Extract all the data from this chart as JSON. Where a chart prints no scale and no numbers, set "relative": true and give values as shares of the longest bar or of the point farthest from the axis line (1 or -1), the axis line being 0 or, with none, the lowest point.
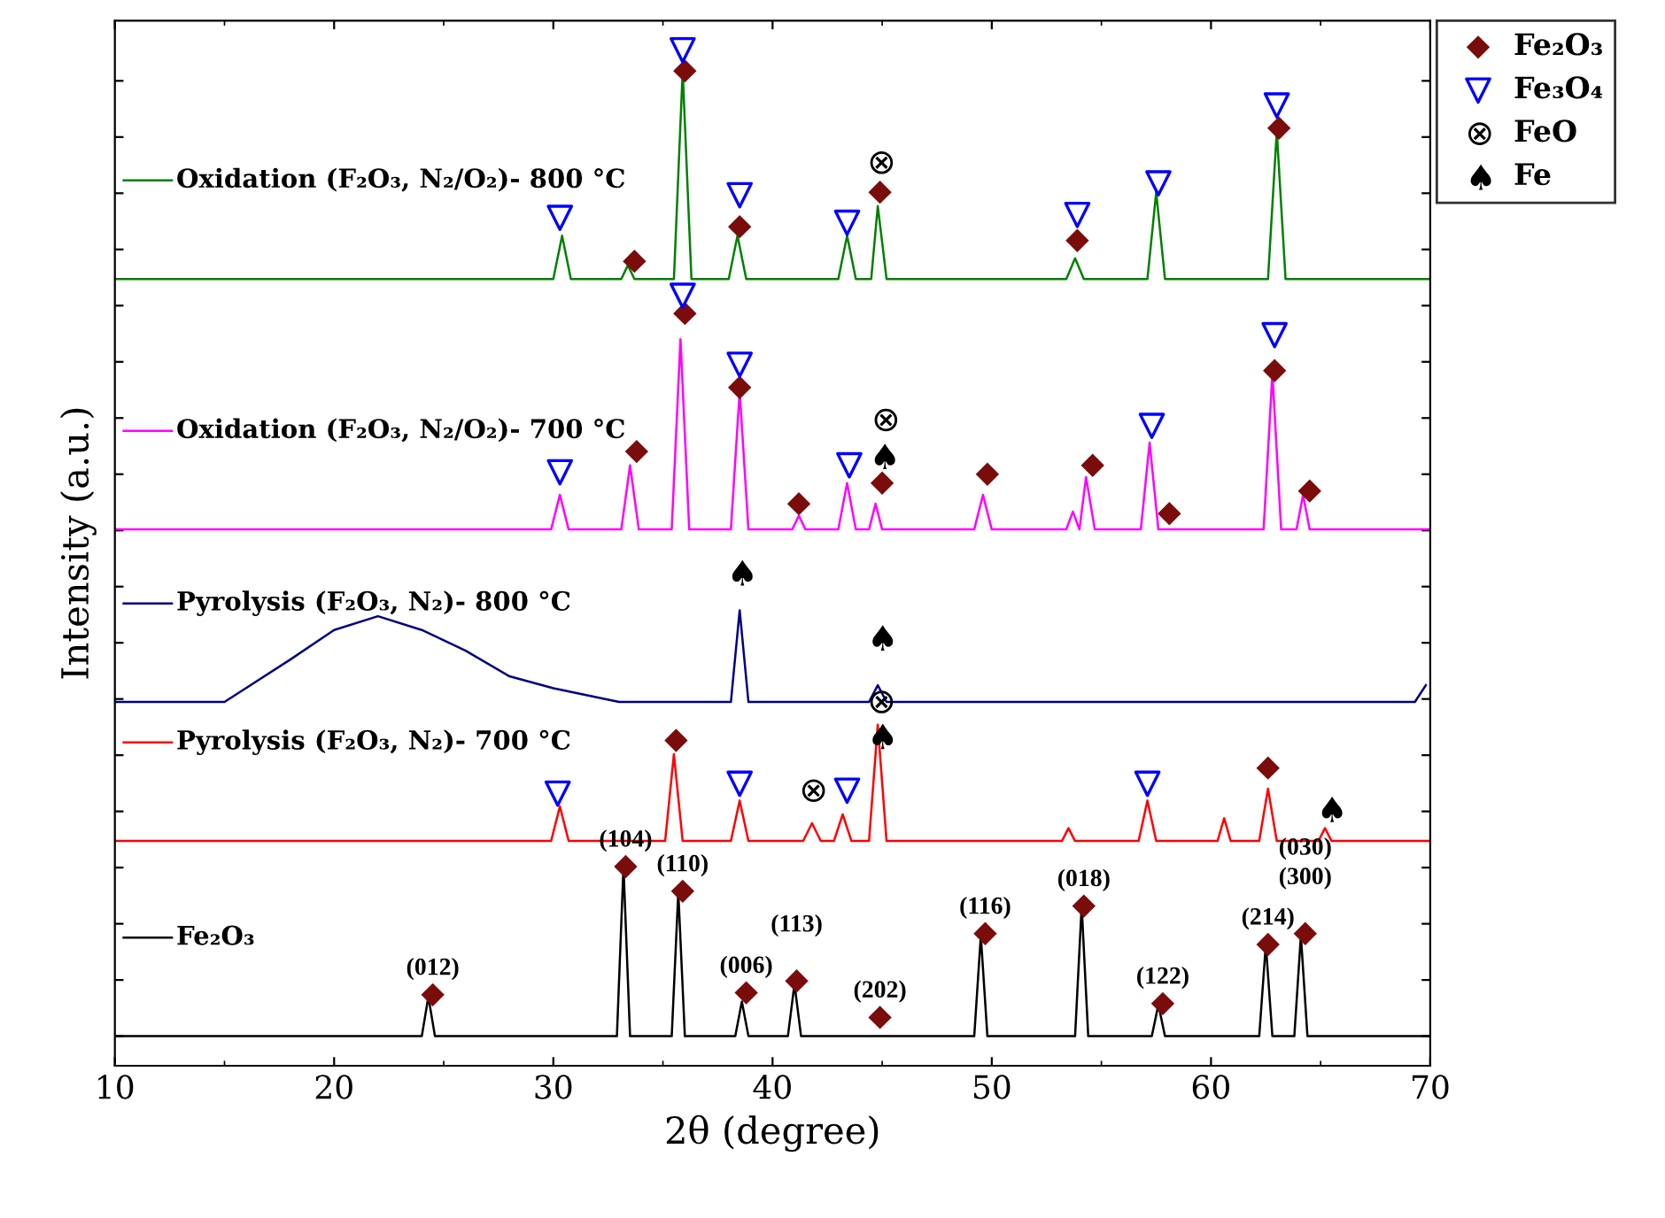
{
  "chart_data": {
    "type": "line",
    "relative": true,
    "xlabel": "2θ (degree)",
    "ylabel": "Intensity (a.u.)",
    "xlim": [
      10,
      70
    ],
    "xticks": [
      10,
      20,
      30,
      40,
      50,
      60,
      70
    ],
    "legend": "top right",
    "grid": false,
    "series": [
      {
        "name": "Oxidation (F₂O₃, N₂/O₂)- 800 °C",
        "color": "#008000",
        "x": [
          10,
          30.0,
          30.4,
          30.8,
          33.1,
          33.4,
          33.7,
          35.5,
          35.9,
          36.3,
          38.0,
          38.4,
          38.8,
          43.0,
          43.4,
          43.8,
          44.5,
          44.8,
          45.2,
          53.4,
          53.8,
          54.2,
          57.1,
          57.5,
          57.9,
          62.6,
          63.0,
          63.4,
          70
        ],
        "values": [
          0.768,
          0.768,
          0.812,
          0.768,
          0.768,
          0.782,
          0.768,
          0.768,
          0.979,
          0.768,
          0.768,
          0.812,
          0.768,
          0.768,
          0.812,
          0.768,
          0.768,
          0.842,
          0.768,
          0.768,
          0.789,
          0.768,
          0.768,
          0.856,
          0.768,
          0.768,
          0.918,
          0.768,
          0.768
        ]
      },
      {
        "name": "Oxidation (F₂O₃, N₂/O₂)- 700 °C",
        "color": "#ff00ff",
        "x": [
          10,
          29.9,
          30.3,
          30.7,
          33.1,
          33.5,
          33.9,
          35.4,
          35.8,
          36.2,
          38.1,
          38.5,
          38.9,
          40.9,
          41.2,
          41.5,
          43.0,
          43.4,
          43.8,
          44.4,
          44.7,
          45.0,
          49.2,
          49.6,
          50.0,
          53.4,
          53.7,
          54.0,
          54.3,
          54.7,
          56.8,
          57.2,
          57.6,
          62.4,
          62.8,
          63.2,
          63.9,
          64.2,
          64.5,
          70
        ],
        "values": [
          0.514,
          0.514,
          0.549,
          0.514,
          0.514,
          0.579,
          0.514,
          0.514,
          0.707,
          0.514,
          0.514,
          0.654,
          0.514,
          0.514,
          0.528,
          0.514,
          0.514,
          0.561,
          0.514,
          0.514,
          0.54,
          0.514,
          0.514,
          0.549,
          0.514,
          0.514,
          0.532,
          0.514,
          0.567,
          0.514,
          0.514,
          0.602,
          0.514,
          0.514,
          0.672,
          0.514,
          0.514,
          0.549,
          0.514,
          0.514
        ]
      },
      {
        "name": "Pyrolysis (F₂O₃, N₂)- 800 °C",
        "color": "#000080",
        "x": [
          10,
          15,
          18,
          20,
          22,
          24,
          26,
          28,
          30,
          33,
          38.1,
          38.5,
          38.9,
          44.4,
          44.8,
          45.2,
          69.3,
          69.8
        ],
        "values": [
          0.339,
          0.339,
          0.382,
          0.412,
          0.426,
          0.412,
          0.391,
          0.365,
          0.353,
          0.339,
          0.339,
          0.432,
          0.339,
          0.339,
          0.356,
          0.339,
          0.339,
          0.356
        ]
      },
      {
        "name": "Pyrolysis (F₂O₃, N₂)- 700 °C",
        "color": "#ff0000",
        "x": [
          10,
          29.9,
          30.3,
          30.7,
          35.1,
          35.5,
          35.9,
          38.1,
          38.5,
          38.9,
          41.4,
          41.8,
          42.2,
          42.8,
          43.2,
          43.6,
          44.4,
          44.8,
          45.2,
          53.2,
          53.5,
          53.8,
          56.7,
          57.1,
          57.5,
          60.3,
          60.6,
          60.9,
          62.2,
          62.6,
          63.0,
          64.9,
          65.2,
          65.5,
          70
        ],
        "values": [
          0.198,
          0.198,
          0.233,
          0.198,
          0.198,
          0.286,
          0.198,
          0.198,
          0.239,
          0.198,
          0.198,
          0.216,
          0.198,
          0.198,
          0.225,
          0.198,
          0.198,
          0.316,
          0.198,
          0.198,
          0.211,
          0.198,
          0.198,
          0.239,
          0.198,
          0.198,
          0.221,
          0.198,
          0.198,
          0.251,
          0.198,
          0.198,
          0.211,
          0.198,
          0.198
        ]
      },
      {
        "name": "Fe₂O₃",
        "color": "#000000",
        "x": [
          10,
          24.0,
          24.3,
          24.6,
          32.9,
          33.2,
          33.5,
          35.4,
          35.7,
          36.0,
          38.3,
          38.6,
          38.9,
          40.7,
          41.0,
          41.3,
          49.2,
          49.5,
          49.8,
          53.8,
          54.1,
          54.4,
          57.3,
          57.6,
          57.9,
          62.2,
          62.5,
          62.8,
          63.8,
          64.1,
          64.4,
          70
        ],
        "values": [
          0.0,
          0.0,
          0.04,
          0.0,
          0.0,
          0.172,
          0.0,
          0.0,
          0.146,
          0.0,
          0.0,
          0.035,
          0.0,
          0.0,
          0.053,
          0.0,
          0.0,
          0.102,
          0.0,
          0.0,
          0.132,
          0.0,
          0.0,
          0.032,
          0.0,
          0.0,
          0.093,
          0.0,
          0.0,
          0.102,
          0.0,
          0.0
        ]
      },
      {
        "name": "Fe₂O₃",
        "type": "scatter",
        "marker": "diamond",
        "color": "#7b0c0c",
        "x": [
          33.7,
          36.0,
          38.5,
          44.9,
          53.9,
          63.1,
          33.8,
          36.0,
          38.5,
          41.2,
          45.0,
          49.8,
          54.6,
          58.1,
          62.9,
          64.5,
          35.6,
          62.6,
          24.5,
          33.3,
          35.9,
          38.8,
          41.1,
          44.9,
          49.7,
          54.2,
          57.8,
          62.6,
          64.3
        ],
        "values": [
          0.786,
          0.979,
          0.821,
          0.856,
          0.807,
          0.921,
          0.593,
          0.733,
          0.658,
          0.54,
          0.561,
          0.57,
          0.579,
          0.53,
          0.675,
          0.553,
          0.3,
          0.272,
          0.042,
          0.172,
          0.147,
          0.044,
          0.056,
          0.019,
          0.104,
          0.132,
          0.033,
          0.093,
          0.104
        ]
      },
      {
        "name": "Fe₃O₄",
        "type": "scatter",
        "marker": "triangle",
        "color": "#0000ff",
        "x": [
          30.3,
          35.9,
          38.5,
          43.4,
          53.9,
          57.6,
          63.0,
          30.3,
          35.9,
          38.5,
          43.5,
          57.3,
          62.9,
          30.2,
          38.5,
          43.4,
          57.1
        ],
        "values": [
          0.83,
          1.0,
          0.853,
          0.825,
          0.833,
          0.865,
          0.944,
          0.572,
          0.751,
          0.681,
          0.579,
          0.619,
          0.711,
          0.246,
          0.256,
          0.249,
          0.256
        ]
      },
      {
        "name": "FeO",
        "type": "scatter",
        "marker": "cross",
        "color": "#000000",
        "x": [
          44.9,
          45.1,
          41.8,
          44.9
        ],
        "values": [
          0.886,
          0.625,
          0.249,
          0.339
        ]
      },
      {
        "name": "Fe",
        "type": "scatter",
        "marker": "star",
        "color": "#000000",
        "x": [
          45.0,
          38.5,
          44.9,
          44.9,
          65.4
        ],
        "values": [
          0.588,
          0.47,
          0.404,
          0.304,
          0.23
        ]
      }
    ],
    "annotations": [
      {
        "text": "(012)",
        "x": 24.5,
        "y": 0.042
      },
      {
        "text": "(104)",
        "x": 33.3,
        "y": 0.172
      },
      {
        "text": "(110)",
        "x": 35.9,
        "y": 0.147
      },
      {
        "text": "(006)",
        "x": 38.8,
        "y": 0.044
      },
      {
        "text": "(113)",
        "x": 41.1,
        "y": 0.056
      },
      {
        "text": "(202)",
        "x": 44.9,
        "y": 0.019
      },
      {
        "text": "(116)",
        "x": 49.7,
        "y": 0.104
      },
      {
        "text": "(018)",
        "x": 54.2,
        "y": 0.132
      },
      {
        "text": "(122)",
        "x": 57.8,
        "y": 0.033
      },
      {
        "text": "(214)",
        "x": 62.6,
        "y": 0.093
      },
      {
        "text": "(300)",
        "x": 64.3,
        "y": 0.104
      },
      {
        "text": "(030)",
        "x": 64.3,
        "y": 0.104
      }
    ]
  }
}
